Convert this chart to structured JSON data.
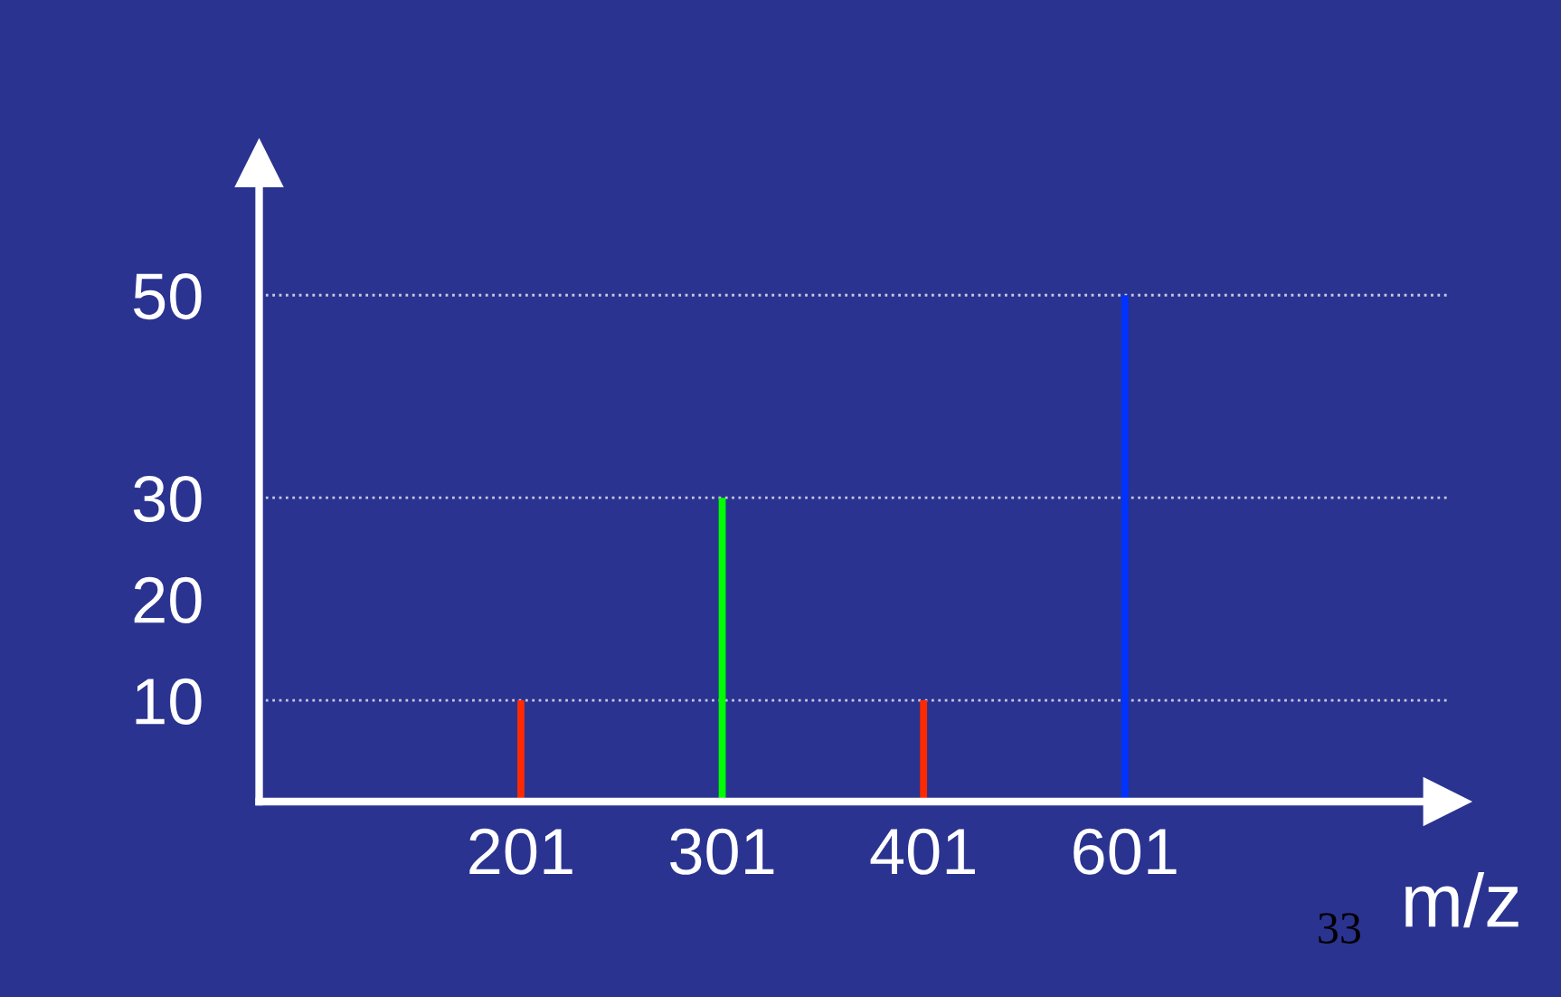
{
  "chart_data": {
    "type": "bar",
    "categories": [
      "201",
      "301",
      "401",
      "601"
    ],
    "values": [
      10,
      30,
      10,
      50
    ],
    "colors": [
      "#ff2a00",
      "#00ff00",
      "#ff2a00",
      "#0033ff"
    ],
    "ylim": [
      0,
      63
    ],
    "yticks": [
      10,
      20,
      30,
      50
    ],
    "xlabel": "m/z",
    "ref_lines": [
      {
        "axis": "y",
        "value": 10,
        "line_style": "dotted",
        "color": "#c8c8e0"
      },
      {
        "axis": "y",
        "value": 30,
        "line_style": "dotted",
        "color": "#c8c8e0"
      },
      {
        "axis": "y",
        "value": 50,
        "line_style": "dotted",
        "color": "#c8c8e0"
      }
    ],
    "annotations": [
      "33"
    ],
    "grid": false,
    "legend": false
  }
}
